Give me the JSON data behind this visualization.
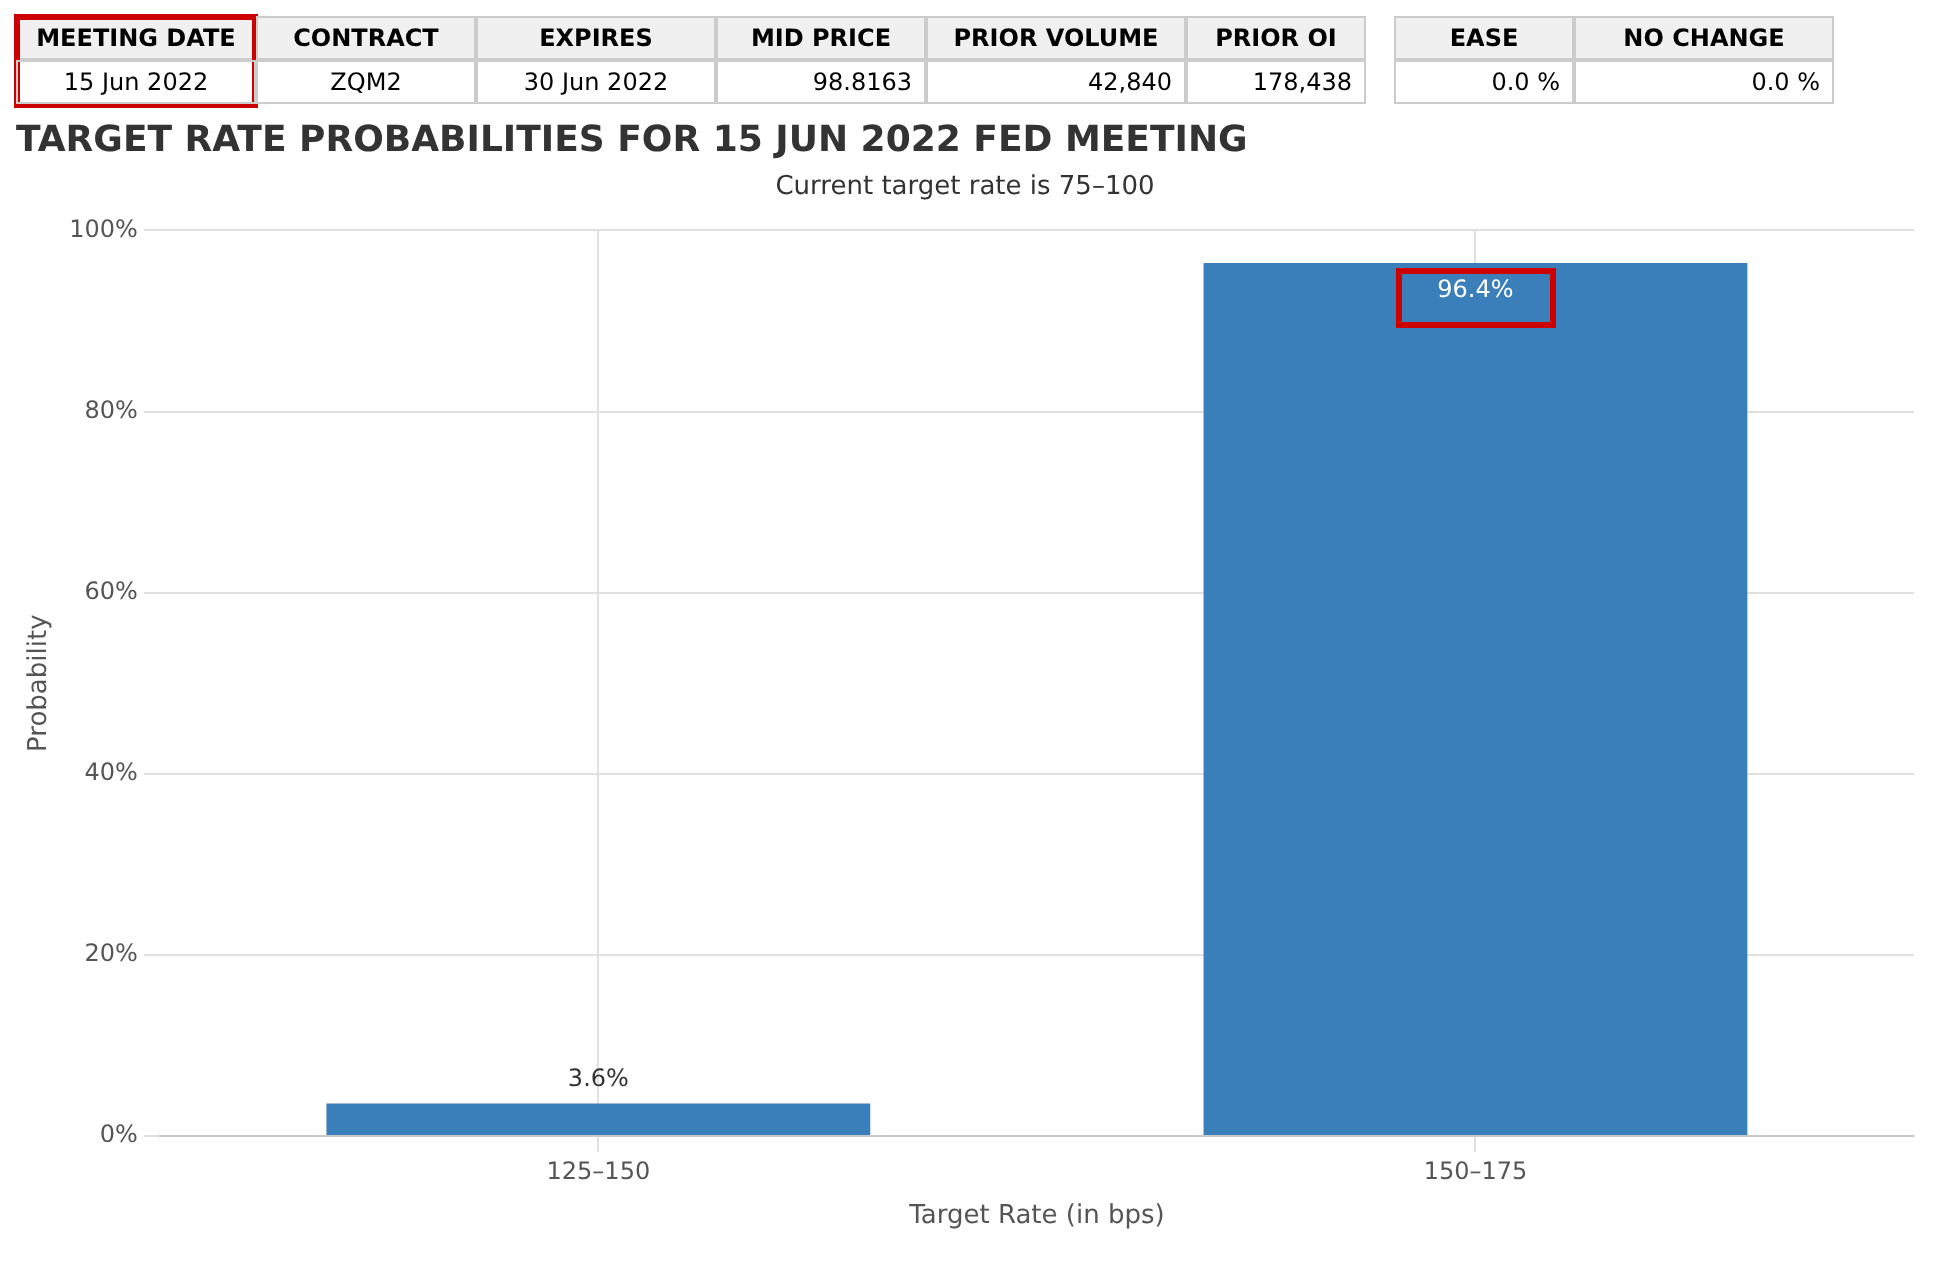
{
  "chart_data": [
    {
      "type": "other",
      "categories": [
        "MEETING DATE",
        "CONTRACT",
        "EXPIRES",
        "MID PRICE",
        "PRIOR VOLUME",
        "PRIOR OI",
        "EASE",
        "NO CHANGE"
      ],
      "annotations": [
        "15 Jun 2022",
        "ZQM2",
        "30 Jun 2022",
        "98.8163",
        "42,840",
        "178,438",
        "0.0 %",
        "0.0 %"
      ]
    },
    {
      "type": "bar",
      "title": "TARGET RATE PROBABILITIES FOR 15 JUN 2022 FED MEETING",
      "subtitle": "Current target rate is 75–100",
      "xlabel": "Target Rate (in bps)",
      "ylabel": "Probability",
      "categories": [
        "125–150",
        "150–175"
      ],
      "values": [
        3.6,
        96.4
      ],
      "value_labels": [
        "3.6%",
        "96.4%"
      ],
      "color": "#3a7fba",
      "ylim": [
        0,
        100
      ],
      "yticks": [
        {
          "value": 0,
          "label": "0%"
        },
        {
          "value": 20,
          "label": "20%"
        },
        {
          "value": 40,
          "label": "40%"
        },
        {
          "value": 60,
          "label": "60%"
        },
        {
          "value": 80,
          "label": "80%"
        },
        {
          "value": 100,
          "label": "100%"
        }
      ],
      "grid": true
    }
  ]
}
